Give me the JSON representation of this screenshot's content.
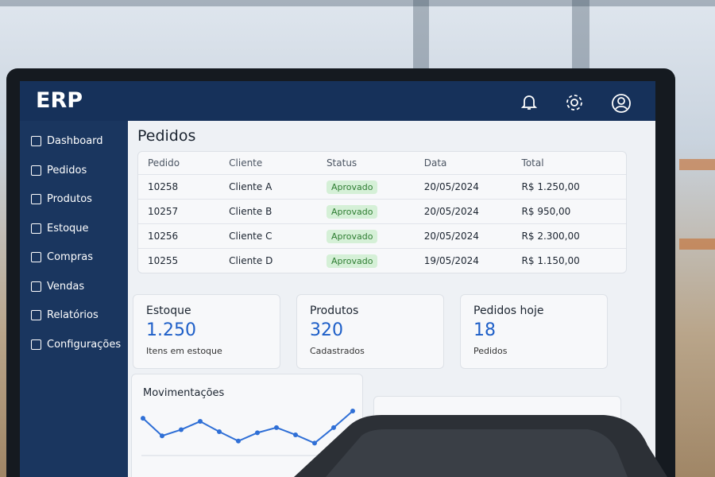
{
  "header": {
    "logo": "ERP"
  },
  "nav": [
    "Dashboard",
    "Pedidos",
    "Produtos",
    "Estoque",
    "Compras",
    "Vendas",
    "Relatórios",
    "Configurações"
  ],
  "orders": {
    "title": "Pedidos",
    "columns": [
      "Pedido",
      "Cliente",
      "Status",
      "Data",
      "Total"
    ],
    "rows": [
      [
        "10258",
        "Cliente A",
        "Aprovado",
        "20/05/2024",
        "R$ 1.250,00"
      ],
      [
        "10257",
        "Cliente B",
        "Aprovado",
        "20/05/2024",
        "R$ 950,00"
      ],
      [
        "10256",
        "Cliente C",
        "Aprovado",
        "20/05/2024",
        "R$ 2.300,00"
      ],
      [
        "10255",
        "Cliente D",
        "Aprovado",
        "19/05/2024",
        "R$ 1.150,00"
      ]
    ]
  },
  "cards": [
    {
      "title": "Estoque",
      "value": "1.250",
      "caption": "Itens em estoque"
    },
    {
      "title": "Produtos",
      "value": "320",
      "caption": "Cadastrados"
    },
    {
      "title": "Pedidos hoje",
      "value": "18",
      "caption": "Pedidos"
    }
  ],
  "movements": {
    "title": "Movimentações",
    "values": [
      36,
      19,
      25,
      33,
      23,
      14,
      22,
      27,
      20,
      12,
      27,
      43
    ],
    "color": "#2f6fd6"
  }
}
